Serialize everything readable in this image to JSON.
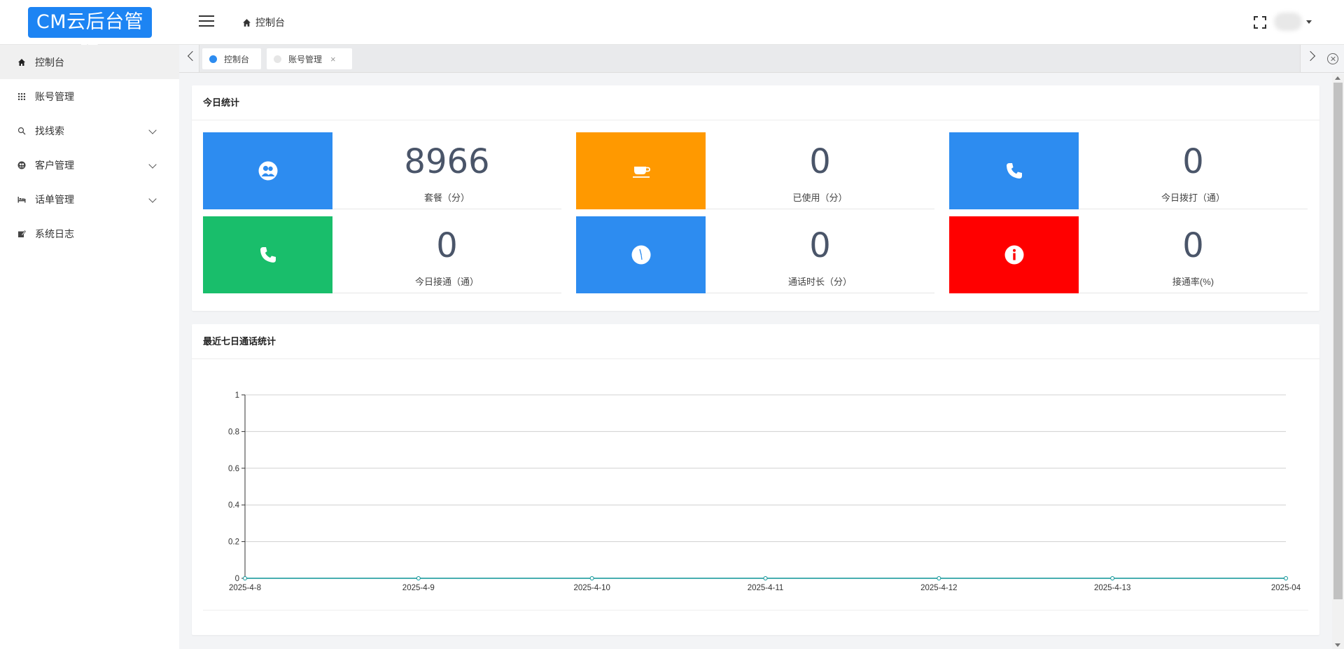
{
  "header": {
    "logo": "CM云后台管理",
    "breadcrumb": "控制台"
  },
  "sidebar": {
    "items": [
      {
        "label": "控制台",
        "icon": "home-icon",
        "active": true,
        "expandable": false
      },
      {
        "label": "账号管理",
        "icon": "grid-icon",
        "active": false,
        "expandable": false
      },
      {
        "label": "找线索",
        "icon": "search-icon",
        "active": false,
        "expandable": true
      },
      {
        "label": "客户管理",
        "icon": "users-icon",
        "active": false,
        "expandable": true
      },
      {
        "label": "话单管理",
        "icon": "bed-icon",
        "active": false,
        "expandable": true
      },
      {
        "label": "系统日志",
        "icon": "edit-icon",
        "active": false,
        "expandable": false
      }
    ]
  },
  "tabs": [
    {
      "label": "控制台",
      "active": true,
      "dot_color": "#2d8cf0"
    },
    {
      "label": "账号管理",
      "active": false,
      "dot_color": "#e6e6e6",
      "closable": true
    }
  ],
  "today": {
    "title": "今日统计",
    "stats": [
      {
        "value": "8966",
        "label": "套餐（分）",
        "color": "#2d8cf0",
        "icon": "users-circle-icon"
      },
      {
        "value": "0",
        "label": "已使用（分）",
        "color": "#ff9900",
        "icon": "coffee-cup-icon"
      },
      {
        "value": "0",
        "label": "今日拨打（通）",
        "color": "#2d8cf0",
        "icon": "phone-icon"
      },
      {
        "value": "0",
        "label": "今日接通（通）",
        "color": "#19be6b",
        "icon": "phone-icon"
      },
      {
        "value": "0",
        "label": "通话时长（分）",
        "color": "#2d8cf0",
        "icon": "clock-icon"
      },
      {
        "value": "0",
        "label": "接通率(%)",
        "color": "#ff0000",
        "icon": "info-icon"
      }
    ]
  },
  "weekly": {
    "title": "最近七日通话统计"
  },
  "chart_data": {
    "type": "line",
    "title": "",
    "x": [
      "2025-4-8",
      "2025-4-9",
      "2025-4-10",
      "2025-4-11",
      "2025-4-12",
      "2025-4-13",
      "2025-04"
    ],
    "series": [
      {
        "values": [
          0,
          0,
          0,
          0,
          0,
          0,
          0
        ],
        "color": "#0a9396"
      }
    ],
    "yticks": [
      "0",
      "0.2",
      "0.4",
      "0.6",
      "0.8",
      "1"
    ],
    "ylim": [
      0,
      1
    ],
    "grid": true,
    "legend": "none"
  }
}
